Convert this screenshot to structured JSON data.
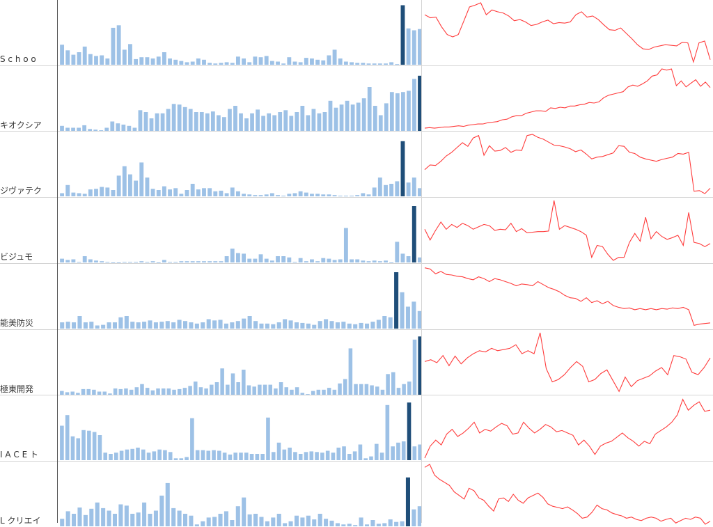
{
  "colors": {
    "bar": "#9dc1e6",
    "highlight": "#1f4e79",
    "line": "#ff3b3b",
    "grid": "#d4d4d4",
    "axis": "#555555"
  },
  "highlight_index": 59,
  "chart_data": [
    {
      "type": "bar+line",
      "label": "S c h o o",
      "bars": [
        32,
        23,
        16,
        20,
        29,
        17,
        14,
        15,
        10,
        59,
        63,
        24,
        33,
        9,
        12,
        12,
        10,
        13,
        20,
        10,
        8,
        6,
        4,
        5,
        10,
        8,
        3,
        2,
        3,
        4,
        3,
        13,
        10,
        4,
        13,
        12,
        14,
        6,
        5,
        2,
        12,
        5,
        4,
        11,
        10,
        8,
        7,
        15,
        24,
        10,
        5,
        4,
        3,
        3,
        2,
        2,
        2,
        2,
        4,
        1,
        95,
        58,
        55,
        57
      ],
      "line": [
        0.8,
        0.75,
        0.76,
        0.6,
        0.47,
        0.43,
        0.47,
        0.7,
        0.93,
        0.96,
        1.0,
        0.8,
        0.88,
        0.85,
        0.83,
        0.78,
        0.7,
        0.72,
        0.68,
        0.62,
        0.64,
        0.68,
        0.71,
        0.65,
        0.67,
        0.66,
        0.68,
        0.8,
        0.85,
        0.76,
        0.78,
        0.72,
        0.63,
        0.55,
        0.54,
        0.58,
        0.49,
        0.4,
        0.3,
        0.23,
        0.22,
        0.26,
        0.28,
        0.3,
        0.29,
        0.28,
        0.34,
        0.33,
        0.01,
        0.33,
        0.36,
        0.05
      ]
    },
    {
      "type": "bar+line",
      "label": "キオクシア",
      "bars": [
        8,
        5,
        5,
        5,
        9,
        3,
        2,
        1,
        5,
        15,
        12,
        10,
        8,
        5,
        33,
        30,
        20,
        28,
        28,
        35,
        43,
        42,
        38,
        35,
        30,
        30,
        28,
        31,
        25,
        22,
        35,
        40,
        28,
        20,
        28,
        34,
        24,
        28,
        25,
        30,
        33,
        24,
        30,
        40,
        25,
        35,
        28,
        30,
        48,
        37,
        42,
        48,
        42,
        45,
        52,
        70,
        40,
        25,
        44,
        62,
        60,
        62,
        64,
        83,
        88
      ],
      "line": [
        0.01,
        0.02,
        0.01,
        0.02,
        0.03,
        0.03,
        0.04,
        0.05,
        0.04,
        0.06,
        0.07,
        0.08,
        0.08,
        0.1,
        0.11,
        0.12,
        0.15,
        0.16,
        0.2,
        0.22,
        0.22,
        0.26,
        0.28,
        0.3,
        0.3,
        0.29,
        0.35,
        0.34,
        0.36,
        0.35,
        0.38,
        0.38,
        0.4,
        0.41,
        0.44,
        0.43,
        0.45,
        0.52,
        0.56,
        0.58,
        0.6,
        0.62,
        0.7,
        0.73,
        0.71,
        0.75,
        0.8,
        0.88,
        0.9,
        1.0,
        0.98,
        1.0,
        0.72,
        0.8,
        0.7,
        0.76,
        0.82,
        0.71,
        0.78,
        0.69
      ]
    },
    {
      "type": "bar+line",
      "label": "ジヴァテク",
      "bars": [
        5,
        18,
        6,
        5,
        4,
        11,
        12,
        15,
        14,
        10,
        33,
        48,
        35,
        25,
        54,
        30,
        12,
        10,
        16,
        11,
        13,
        4,
        10,
        20,
        11,
        13,
        13,
        8,
        9,
        5,
        14,
        8,
        4,
        3,
        2,
        2,
        3,
        5,
        2,
        1,
        4,
        5,
        8,
        6,
        4,
        4,
        3,
        3,
        2,
        1,
        1,
        1,
        2,
        5,
        3,
        14,
        30,
        18,
        20,
        24,
        88,
        22,
        30,
        13
      ],
      "line": [
        0.41,
        0.49,
        0.48,
        0.55,
        0.64,
        0.7,
        0.78,
        0.86,
        0.8,
        0.94,
        0.98,
        0.65,
        0.81,
        0.72,
        0.73,
        0.78,
        0.7,
        0.74,
        0.73,
        0.98,
        1.0,
        0.95,
        0.92,
        0.87,
        0.82,
        0.81,
        0.79,
        0.76,
        0.71,
        0.74,
        0.67,
        0.59,
        0.62,
        0.63,
        0.66,
        0.69,
        0.81,
        0.8,
        0.7,
        0.68,
        0.62,
        0.59,
        0.57,
        0.55,
        0.58,
        0.6,
        0.62,
        0.68,
        0.67,
        0.7,
        0.05,
        0.06,
        0.01,
        0.1
      ]
    },
    {
      "type": "bar+line",
      "label": "ビジュモ",
      "bars": [
        6,
        4,
        5,
        1,
        10,
        5,
        3,
        2,
        1,
        0,
        0,
        1,
        1,
        1,
        2,
        1,
        2,
        0,
        4,
        1,
        1,
        2,
        2,
        2,
        2,
        2,
        2,
        2,
        2,
        10,
        22,
        15,
        14,
        6,
        6,
        13,
        6,
        3,
        10,
        10,
        8,
        1,
        7,
        2,
        5,
        2,
        7,
        6,
        4,
        5,
        55,
        5,
        5,
        3,
        2,
        3,
        2,
        3,
        0,
        33,
        14,
        10,
        90,
        8
      ],
      "line": [
        0.52,
        0.34,
        0.5,
        0.64,
        0.52,
        0.6,
        0.55,
        0.62,
        0.58,
        0.52,
        0.56,
        0.6,
        0.58,
        0.5,
        0.52,
        0.51,
        0.62,
        0.48,
        0.53,
        0.46,
        0.47,
        0.48,
        0.48,
        0.49,
        1.0,
        0.52,
        0.58,
        0.55,
        0.52,
        0.48,
        0.42,
        0.05,
        0.25,
        0.23,
        0.1,
        0.0,
        0.05,
        0.05,
        0.3,
        0.45,
        0.32,
        0.72,
        0.36,
        0.48,
        0.4,
        0.35,
        0.38,
        0.42,
        0.25,
        0.8,
        0.3,
        0.28,
        0.23,
        0.28
      ]
    },
    {
      "type": "bar+line",
      "label": "能美防災",
      "bars": [
        10,
        11,
        10,
        20,
        10,
        11,
        5,
        6,
        10,
        10,
        18,
        20,
        11,
        10,
        11,
        13,
        10,
        11,
        12,
        10,
        14,
        12,
        10,
        8,
        10,
        15,
        13,
        14,
        8,
        10,
        12,
        16,
        20,
        12,
        8,
        8,
        7,
        10,
        15,
        13,
        10,
        9,
        8,
        6,
        12,
        15,
        12,
        10,
        11,
        8,
        7,
        9,
        8,
        11,
        14,
        20,
        18,
        90,
        58,
        35,
        43,
        28
      ],
      "line": [
        0.98,
        0.96,
        0.88,
        0.92,
        0.87,
        0.86,
        0.84,
        0.83,
        0.8,
        0.78,
        0.83,
        0.8,
        0.75,
        0.8,
        0.78,
        0.75,
        0.72,
        0.68,
        0.71,
        0.7,
        0.68,
        0.75,
        0.7,
        0.65,
        0.62,
        0.58,
        0.52,
        0.48,
        0.47,
        0.42,
        0.48,
        0.4,
        0.43,
        0.38,
        0.42,
        0.35,
        0.32,
        0.3,
        0.31,
        0.28,
        0.3,
        0.28,
        0.3,
        0.28,
        0.3,
        0.29,
        0.31,
        0.3,
        0.32,
        0.28,
        0.02,
        0.04,
        0.05,
        0.06
      ]
    },
    {
      "type": "bar+line",
      "label": "極東開発",
      "bars": [
        6,
        4,
        5,
        3,
        9,
        9,
        8,
        5,
        5,
        2,
        10,
        9,
        10,
        8,
        12,
        17,
        11,
        7,
        10,
        10,
        10,
        8,
        9,
        11,
        14,
        21,
        12,
        10,
        16,
        20,
        42,
        16,
        34,
        20,
        40,
        15,
        13,
        16,
        16,
        16,
        10,
        20,
        12,
        8,
        12,
        3,
        1,
        6,
        8,
        8,
        11,
        8,
        18,
        25,
        74,
        17,
        17,
        17,
        15,
        13,
        8,
        33,
        36,
        11,
        17,
        21,
        88,
        93
      ],
      "line": [
        0.52,
        0.55,
        0.5,
        0.62,
        0.45,
        0.61,
        0.48,
        0.58,
        0.65,
        0.7,
        0.68,
        0.74,
        0.7,
        0.72,
        0.74,
        0.8,
        0.65,
        0.7,
        0.65,
        1.0,
        0.4,
        0.18,
        0.22,
        0.3,
        0.42,
        0.52,
        0.44,
        0.18,
        0.22,
        0.32,
        0.38,
        0.2,
        0.02,
        0.26,
        0.1,
        0.2,
        0.24,
        0.28,
        0.36,
        0.42,
        0.3,
        0.62,
        0.6,
        0.56,
        0.34,
        0.3,
        0.42,
        0.58
      ]
    },
    {
      "type": "bar+line",
      "label": "I A C E ト",
      "bars": [
        55,
        72,
        38,
        35,
        48,
        47,
        45,
        40,
        12,
        10,
        12,
        15,
        17,
        18,
        20,
        17,
        12,
        14,
        17,
        16,
        13,
        3,
        3,
        5,
        67,
        16,
        16,
        15,
        16,
        15,
        12,
        9,
        12,
        12,
        12,
        10,
        10,
        10,
        68,
        13,
        28,
        17,
        20,
        13,
        10,
        13,
        14,
        13,
        12,
        15,
        12,
        20,
        22,
        10,
        14,
        25,
        3,
        6,
        26,
        12,
        88,
        22,
        28,
        30,
        92,
        22,
        25
      ],
      "line": [
        0.0,
        0.2,
        0.3,
        0.22,
        0.4,
        0.48,
        0.36,
        0.42,
        0.5,
        0.6,
        0.42,
        0.48,
        0.45,
        0.52,
        0.58,
        0.54,
        0.4,
        0.42,
        0.6,
        0.5,
        0.42,
        0.48,
        0.56,
        0.52,
        0.44,
        0.46,
        0.42,
        0.38,
        0.22,
        0.3,
        0.2,
        0.06,
        0.2,
        0.25,
        0.28,
        0.35,
        0.42,
        0.34,
        0.28,
        0.2,
        0.28,
        0.24,
        0.4,
        0.46,
        0.52,
        0.6,
        0.72,
        0.98,
        0.8,
        0.88,
        0.94,
        0.78,
        0.8
      ]
    },
    {
      "type": "bar+line",
      "label": "L クリエイ",
      "bars": [
        12,
        24,
        20,
        30,
        18,
        28,
        38,
        29,
        25,
        20,
        35,
        33,
        20,
        22,
        38,
        20,
        25,
        49,
        69,
        29,
        25,
        20,
        17,
        3,
        8,
        14,
        15,
        20,
        24,
        10,
        32,
        46,
        19,
        20,
        15,
        8,
        14,
        20,
        5,
        8,
        17,
        14,
        17,
        11,
        20,
        12,
        9,
        5,
        3,
        4,
        2,
        14,
        3,
        10,
        4,
        5,
        11,
        7,
        8,
        78,
        27,
        32
      ],
      "line": [
        0.95,
        1.0,
        0.82,
        0.75,
        0.7,
        0.65,
        0.54,
        0.48,
        0.42,
        0.6,
        0.56,
        0.44,
        0.4,
        0.3,
        0.22,
        0.42,
        0.44,
        0.38,
        0.5,
        0.4,
        0.35,
        0.44,
        0.48,
        0.52,
        0.45,
        0.34,
        0.3,
        0.28,
        0.26,
        0.29,
        0.24,
        0.18,
        0.1,
        0.12,
        0.2,
        0.32,
        0.26,
        0.24,
        0.19,
        0.16,
        0.14,
        0.1,
        0.12,
        0.08,
        0.06,
        0.1,
        0.12,
        0.1,
        0.05,
        0.08,
        0.1,
        0.02,
        0.06,
        0.1,
        0.08,
        0.12,
        0.1,
        0.0,
        0.05
      ]
    }
  ]
}
